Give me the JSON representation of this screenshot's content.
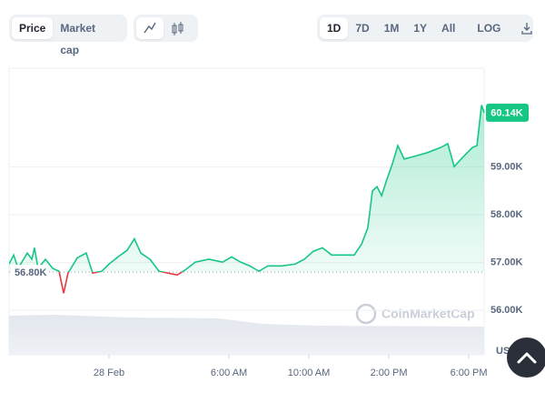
{
  "controls": {
    "metric_tabs": [
      "Price",
      "Market cap"
    ],
    "range_tabs": [
      "1D",
      "7D",
      "1M",
      "1Y",
      "All"
    ],
    "scale_toggle": "LOG"
  },
  "watermark": "CoinMarketCap",
  "chart_data": {
    "type": "line",
    "x": [
      -5.0,
      -4.77,
      -4.55,
      -4.09,
      -3.86,
      -3.73,
      -3.55,
      -3.18,
      -2.82,
      -2.5,
      -2.27,
      -2.05,
      -1.59,
      -1.14,
      -0.82,
      -0.36,
      0,
      0.45,
      0.91,
      1.27,
      1.59,
      2.05,
      2.5,
      2.95,
      3.41,
      3.86,
      4.32,
      5.0,
      5.68,
      6.14,
      6.59,
      7.05,
      7.5,
      7.95,
      8.64,
      9.32,
      9.77,
      10.23,
      10.68,
      11.14,
      11.82,
      12.27,
      12.64,
      12.95,
      13.18,
      13.41,
      13.64,
      13.86,
      14.18,
      14.45,
      14.77,
      15.23,
      15.91,
      16.59,
      16.95,
      17.27,
      17.73,
      18.18,
      18.41,
      18.64,
      18.77
    ],
    "values": [
      56.97,
      57.16,
      56.88,
      57.2,
      57.07,
      57.31,
      56.88,
      57.07,
      56.88,
      56.82,
      56.36,
      56.78,
      57.1,
      57.2,
      56.78,
      56.82,
      56.97,
      57.12,
      57.26,
      57.5,
      57.2,
      57.07,
      56.82,
      56.78,
      56.74,
      56.86,
      57.01,
      57.07,
      57.01,
      57.12,
      57.01,
      56.93,
      56.82,
      56.93,
      56.93,
      56.97,
      57.07,
      57.24,
      57.31,
      57.16,
      57.16,
      57.16,
      57.39,
      57.73,
      58.5,
      58.59,
      58.4,
      58.69,
      59.07,
      59.45,
      59.17,
      59.22,
      59.3,
      59.41,
      59.49,
      59.01,
      59.22,
      59.41,
      59.45,
      60.3,
      60.14
    ],
    "current_label": "60.14K",
    "up_color": "#16c784",
    "down_color": "#ea3943",
    "reference_line": {
      "value": 56.8,
      "label": "56.80K"
    },
    "xlim": [
      -5,
      18.77
    ],
    "xticks": [
      {
        "value": 0,
        "label": "28 Feb"
      },
      {
        "value": 6,
        "label": "6:00 AM"
      },
      {
        "value": 10,
        "label": "10:00 AM"
      },
      {
        "value": 14,
        "label": "2:00 PM"
      },
      {
        "value": 18,
        "label": "6:00 PM"
      }
    ],
    "ylim": [
      55.07,
      61.07
    ],
    "yticks": [
      {
        "value": 56,
        "label": "56.00K"
      },
      {
        "value": 57,
        "label": "57.00K"
      },
      {
        "value": 58,
        "label": "58.00K"
      },
      {
        "value": 59,
        "label": "59.00K"
      }
    ],
    "y_unit": "USD",
    "grid": true
  }
}
